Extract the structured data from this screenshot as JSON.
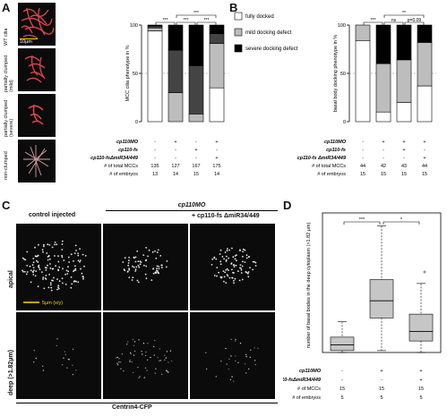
{
  "panels": {
    "A": "A",
    "B": "B",
    "C": "C",
    "D": "D"
  },
  "panelA": {
    "scale_bar": "10µm",
    "micrograph_labels": [
      "WT cilia",
      "partially clumped (mild)",
      "partially clumped (severe)",
      "non-clumped"
    ]
  },
  "panelC": {
    "col1": "control injected",
    "group_label": "cp110MO",
    "col3": "+ cp110-fs ΔmiR34/449",
    "row1": "apical",
    "row2": "deep (>1.82µm)",
    "scale_bar": "5µm (x/y)",
    "footer": "Centrin4-CFP"
  },
  "colors": {
    "white_fill": "#ffffff",
    "black_fill": "#000000",
    "dark_gray": "#444444",
    "light_gray": "#bdbdbd",
    "mid_gray": "#888888",
    "box_fill": "#c6c6c6",
    "image_bg": "#0b0b0b",
    "cilia_red": "#e0454d"
  },
  "chart_data": [
    {
      "panel": "A",
      "type": "bar",
      "stacked": true,
      "ylabel": "MCC cilia phenotype in %",
      "ylim": [
        0,
        100
      ],
      "yticks": [
        0,
        50,
        100
      ],
      "dashed_reference": 50,
      "categories": [
        "1",
        "2",
        "3",
        "4"
      ],
      "series": [
        {
          "values": [
            94,
            0,
            0,
            35
          ],
          "color": "#ffffff"
        },
        {
          "values": [
            3,
            30,
            8,
            46
          ],
          "color": "#bdbdbd"
        },
        {
          "values": [
            2,
            44,
            50,
            10
          ],
          "color": "#444444"
        },
        {
          "values": [
            1,
            26,
            42,
            9
          ],
          "color": "#000000"
        }
      ],
      "significance": [
        {
          "from": 0,
          "to": 1,
          "label": "***",
          "level": 1
        },
        {
          "from": 1,
          "to": 2,
          "label": "***",
          "level": 1
        },
        {
          "from": 2,
          "to": 3,
          "label": "***",
          "level": 1
        },
        {
          "from": 1,
          "to": 3,
          "label": "***",
          "level": 2
        }
      ],
      "conditions": [
        {
          "label": "cp110MO",
          "values": [
            "-",
            "+",
            "-",
            "+"
          ]
        },
        {
          "label": "cp110-fs",
          "values": [
            "-",
            "-",
            "+",
            "-"
          ]
        },
        {
          "label": "cp110-fsΔmiR34/449",
          "values": [
            "-",
            "-",
            "-",
            "+"
          ]
        },
        {
          "label": "# of total MCCs",
          "values": [
            "135",
            "127",
            "167",
            "175"
          ]
        },
        {
          "label": "# of embryos",
          "values": [
            "13",
            "14",
            "15",
            "14"
          ]
        }
      ]
    },
    {
      "panel": "B",
      "type": "bar",
      "stacked": true,
      "ylabel": "basal body docking phenotype in %",
      "ylim": [
        0,
        100
      ],
      "yticks": [
        0,
        50,
        100
      ],
      "dashed_reference": 50,
      "categories": [
        "1",
        "2",
        "3",
        "4"
      ],
      "legend": [
        {
          "name": "fully docked",
          "color": "#ffffff"
        },
        {
          "name": "mild docking defect",
          "color": "#bdbdbd"
        },
        {
          "name": "severe docking defect",
          "color": "#000000"
        }
      ],
      "series": [
        {
          "name": "fully docked",
          "values": [
            84,
            10,
            20,
            37
          ],
          "color": "#ffffff"
        },
        {
          "name": "mild docking defect",
          "values": [
            16,
            50,
            44,
            45
          ],
          "color": "#bdbdbd"
        },
        {
          "name": "severe docking defect",
          "values": [
            0,
            40,
            36,
            18
          ],
          "color": "#000000"
        }
      ],
      "significance": [
        {
          "from": 0,
          "to": 1,
          "label": "***",
          "level": 1
        },
        {
          "from": 1,
          "to": 2,
          "label": "ns",
          "level": 1
        },
        {
          "from": 2,
          "to": 3,
          "label": "p=0.09",
          "level": 1
        },
        {
          "from": 1,
          "to": 3,
          "label": "**",
          "level": 2
        }
      ],
      "conditions": [
        {
          "label": "cp110MO",
          "values": [
            "-",
            "+",
            "+",
            "+"
          ]
        },
        {
          "label": "cp110-fs",
          "values": [
            "-",
            "-",
            "+",
            "-"
          ]
        },
        {
          "label": "cp110-fs ΔmiR34/449",
          "values": [
            "-",
            "-",
            "-",
            "+"
          ]
        },
        {
          "label": "# of total MCCs",
          "values": [
            "44",
            "42",
            "43",
            "44"
          ]
        },
        {
          "label": "# of embryos",
          "values": [
            "15",
            "15",
            "15",
            "15"
          ]
        }
      ]
    },
    {
      "panel": "D",
      "type": "box",
      "ylabel": "number of basal bodies in the deep cytoplasm (>1.82 µm)",
      "categories": [
        "1",
        "2",
        "3"
      ],
      "boxes": [
        {
          "whisker_low": 0,
          "q1": 1,
          "median": 4,
          "q3": 8,
          "whisker_high": 16,
          "outliers": []
        },
        {
          "whisker_low": 1,
          "q1": 18,
          "median": 27,
          "q3": 38,
          "whisker_high": 66,
          "outliers": []
        },
        {
          "whisker_low": 0,
          "q1": 6,
          "median": 11,
          "q3": 20,
          "whisker_high": 36,
          "outliers": [
            42
          ]
        }
      ],
      "ylim": [
        0,
        70
      ],
      "significance": [
        {
          "from": 0,
          "to": 1,
          "label": "***"
        },
        {
          "from": 1,
          "to": 2,
          "label": "*"
        }
      ],
      "conditions": [
        {
          "label": "cp110MO",
          "values": [
            "-",
            "+",
            "+"
          ]
        },
        {
          "label": "cp110-fsΔmiR34/449",
          "values": [
            "-",
            "-",
            "+"
          ]
        },
        {
          "label": "# of MCCs",
          "values": [
            "15",
            "15",
            "15"
          ]
        },
        {
          "label": "# of embryos",
          "values": [
            "5",
            "5",
            "5"
          ]
        }
      ]
    }
  ]
}
